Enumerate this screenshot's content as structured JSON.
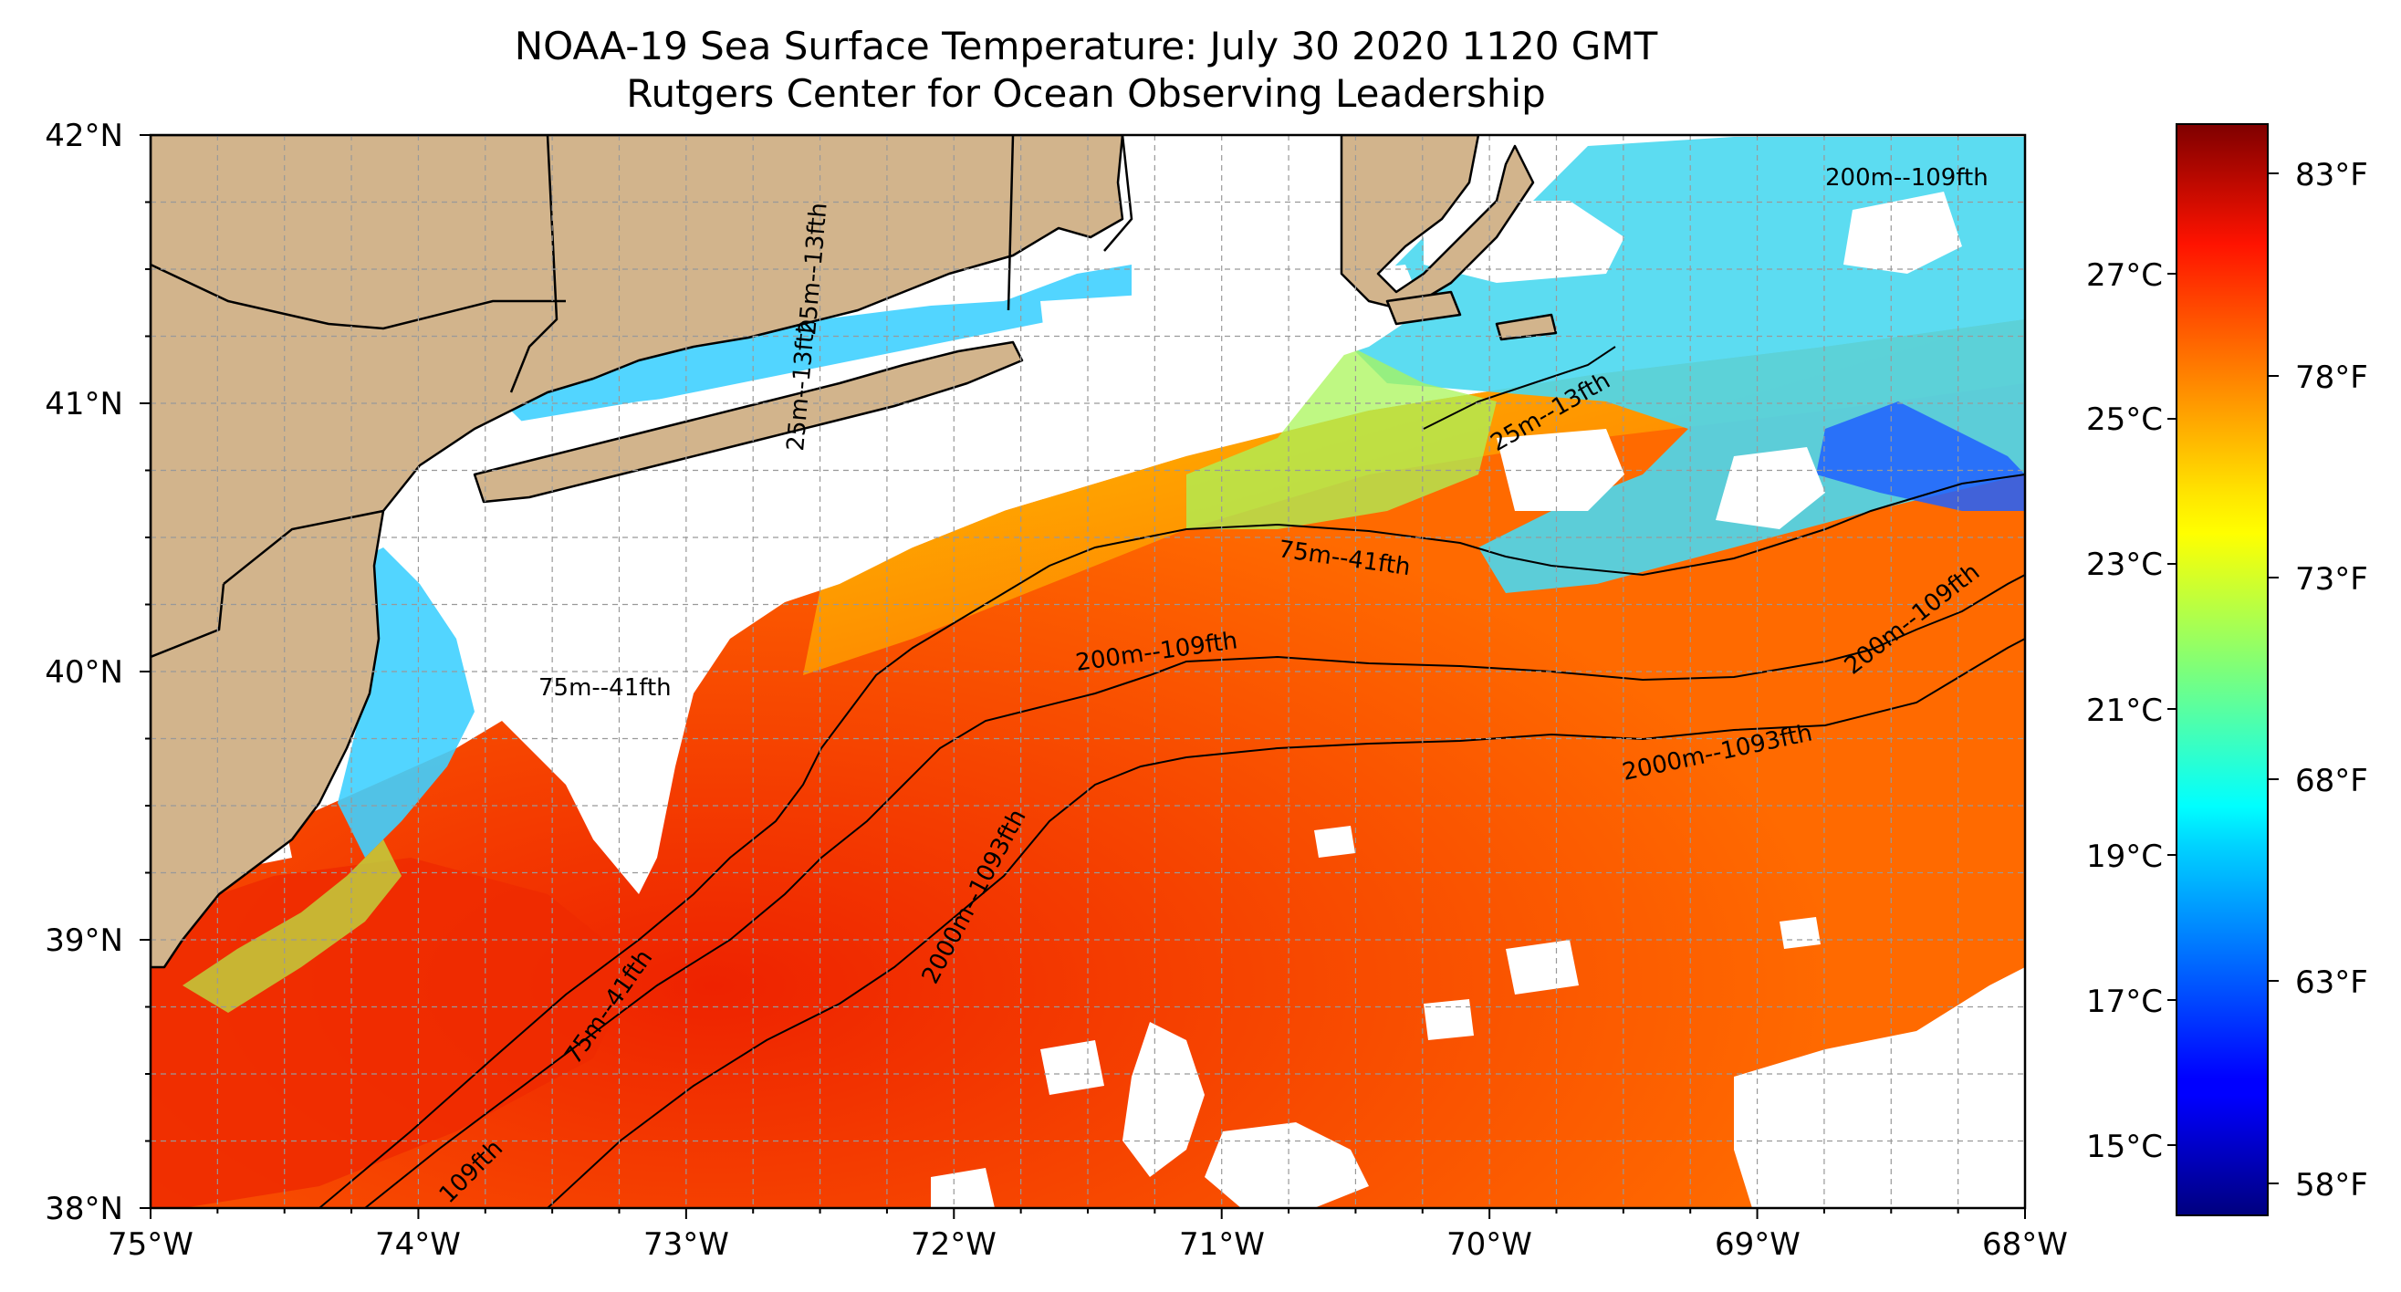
{
  "title": "NOAA-19 Sea Surface Temperature: July 30 2020 1120 GMT",
  "subtitle": "Rutgers Center for Ocean Observing Leadership",
  "map": {
    "extent": {
      "lon": [
        -75,
        -68
      ],
      "lat": [
        38,
        42
      ]
    },
    "grid": true,
    "lon_ticks": [
      "75°W",
      "74°W",
      "73°W",
      "72°W",
      "71°W",
      "70°W",
      "69°W",
      "68°W"
    ],
    "lat_ticks": [
      "38°N",
      "39°N",
      "40°N",
      "41°N",
      "42°N"
    ],
    "colors": {
      "land": "#d2b48c",
      "cloud_nodata": "#ffffff",
      "warm": "#ff4000",
      "cool": "#33ccff"
    }
  },
  "contour_labels": [
    {
      "id": "c1",
      "text": "200m--109fth"
    },
    {
      "id": "c2",
      "text": "75m--41fth"
    },
    {
      "id": "c3",
      "text": "200m--109fth"
    },
    {
      "id": "c4",
      "text": "200m--109fth"
    },
    {
      "id": "c5",
      "text": "2000m--1093fth"
    },
    {
      "id": "c6",
      "text": "2000m--1093fth"
    },
    {
      "id": "c7",
      "text": "75m--41fth"
    },
    {
      "id": "c8",
      "text": "75m--41fth"
    },
    {
      "id": "c9",
      "text": "109fth"
    },
    {
      "id": "c10",
      "text": "25m--13fth"
    },
    {
      "id": "c11",
      "text": "25m--13fth"
    },
    {
      "id": "c12",
      "text": "25m--13fth"
    }
  ],
  "colorbar": {
    "colormap": "jet",
    "celsius_labels": [
      "27°C",
      "25°C",
      "23°C",
      "21°C",
      "19°C",
      "17°C",
      "15°C"
    ],
    "fahrenheit_labels": [
      "83°F",
      "78°F",
      "73°F",
      "68°F",
      "63°F",
      "58°F"
    ]
  }
}
